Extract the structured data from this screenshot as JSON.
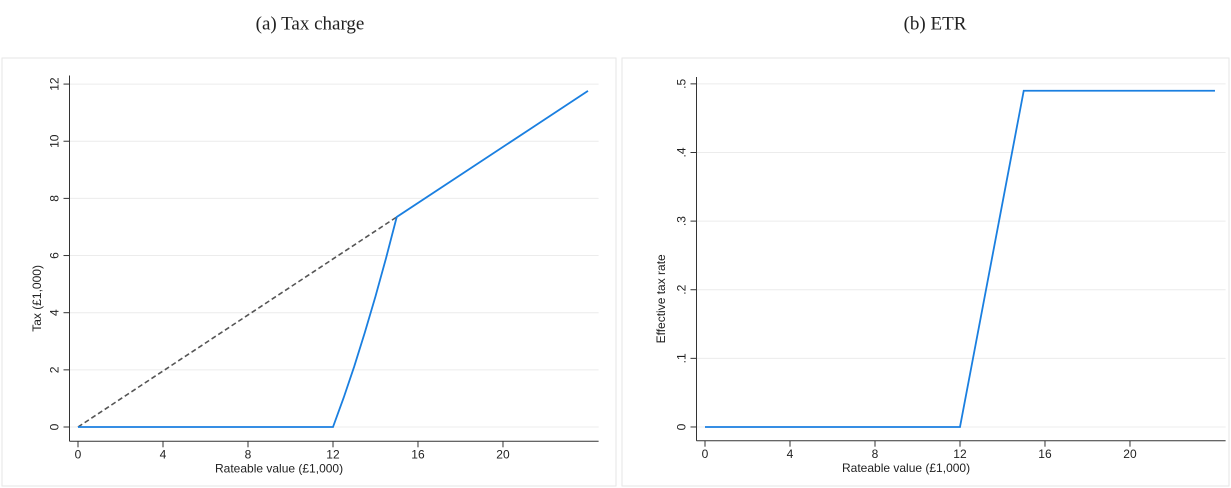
{
  "chart_data": [
    {
      "type": "line",
      "title": "(a) Tax charge",
      "x_label": "Rateable value (£1,000)",
      "y_label": "Tax (£1,000)",
      "xlim": [
        -0.4,
        24.5
      ],
      "xticks": [
        0,
        4,
        8,
        12,
        16,
        20
      ],
      "ylim": [
        -0.5,
        12.3
      ],
      "yticks": [
        0,
        2,
        4,
        6,
        8,
        10,
        12
      ],
      "grid": true,
      "series": [
        {
          "x": [
            0,
            15
          ],
          "values": [
            0,
            7.35
          ],
          "color": "#555555",
          "style": "dashed"
        },
        {
          "x": [
            0,
            12,
            12.5,
            13,
            13.5,
            14,
            14.5,
            15,
            24
          ],
          "values": [
            0,
            0,
            1.02,
            2.12,
            3.31,
            4.57,
            5.92,
            7.35,
            11.76
          ],
          "color": "#1a7fe0",
          "style": "solid"
        }
      ]
    },
    {
      "type": "line",
      "title": "(b) ETR",
      "x_label": "Rateable value (£1,000)",
      "y_label": "Effective tax rate",
      "xlim": [
        -0.4,
        24.5
      ],
      "xticks": [
        0,
        4,
        8,
        12,
        16,
        20
      ],
      "ylim": [
        -0.02,
        0.51
      ],
      "yticks": [
        0,
        {
          "value": 0.1,
          "label": ".1"
        },
        {
          "value": 0.2,
          "label": ".2"
        },
        {
          "value": 0.3,
          "label": ".3"
        },
        {
          "value": 0.4,
          "label": ".4"
        },
        {
          "value": 0.5,
          "label": ".5"
        }
      ],
      "grid": true,
      "series": [
        {
          "x": [
            0,
            12,
            15,
            24
          ],
          "values": [
            0,
            0,
            0.49,
            0.49
          ],
          "color": "#1a7fe0",
          "style": "solid"
        }
      ]
    }
  ]
}
